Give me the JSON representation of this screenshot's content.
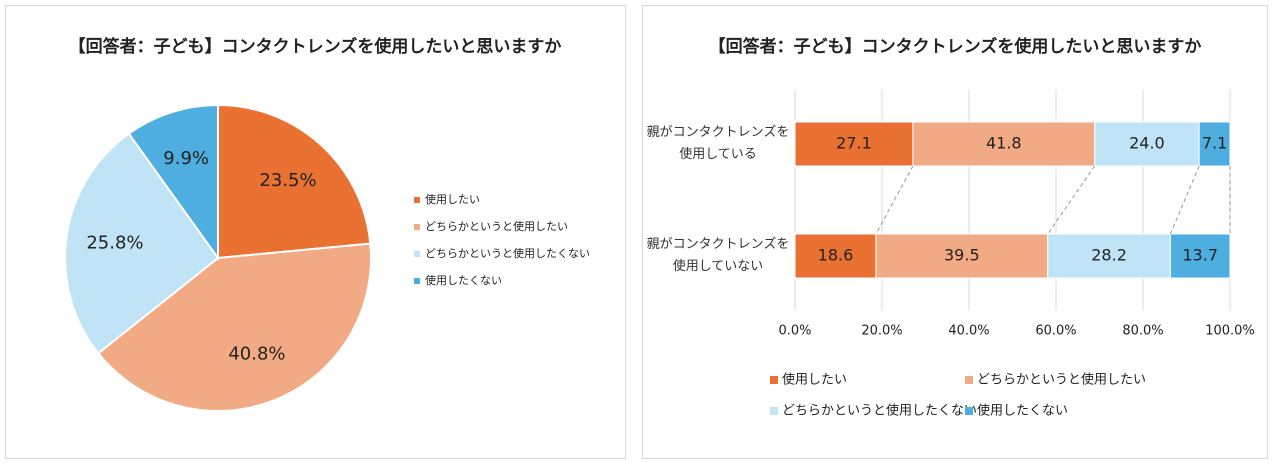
{
  "chart_data": [
    {
      "type": "pie",
      "title": "【回答者：子ども】コンタクトレンズを使用したいと思いますか",
      "categories": [
        "使用したい",
        "どちらかというと使用したい",
        "どちらかというと使用したくない",
        "使用したくない"
      ],
      "values": [
        23.5,
        40.8,
        25.8,
        9.9
      ],
      "value_labels": [
        "23.5%",
        "40.8%",
        "25.8%",
        "9.9%"
      ],
      "colors": [
        "#e97132",
        "#f2aa84",
        "#c0e4f5",
        "#4eaedf"
      ],
      "legend": "right"
    },
    {
      "type": "stacked-bar-horizontal",
      "title": "【回答者：子ども】コンタクトレンズを使用したいと思いますか",
      "categories": [
        "親がコンタクトレンズを使用している",
        "親がコンタクトレンズを使用していない"
      ],
      "series": [
        {
          "name": "使用したい",
          "color": "#e97132",
          "values": [
            27.1,
            18.6
          ]
        },
        {
          "name": "どちらかというと使用したい",
          "color": "#f2aa84",
          "values": [
            41.8,
            39.5
          ]
        },
        {
          "name": "どちらかというと使用したくない",
          "color": "#c0e4f5",
          "values": [
            24.0,
            28.2
          ],
          "value_labels": [
            "24.0",
            "28.2"
          ]
        },
        {
          "name": "使用したくない",
          "color": "#4eaedf",
          "values": [
            7.1,
            13.7
          ]
        }
      ],
      "xlim": [
        0,
        100
      ],
      "xticks": [
        {
          "value": 0,
          "label": "0.0%"
        },
        {
          "value": 20,
          "label": "20.0%"
        },
        {
          "value": 40,
          "label": "40.0%"
        },
        {
          "value": 60,
          "label": "60.0%"
        },
        {
          "value": 80,
          "label": "80.0%"
        },
        {
          "value": 100,
          "label": "100.0%"
        }
      ],
      "grid": true,
      "legend": "bottom"
    }
  ]
}
